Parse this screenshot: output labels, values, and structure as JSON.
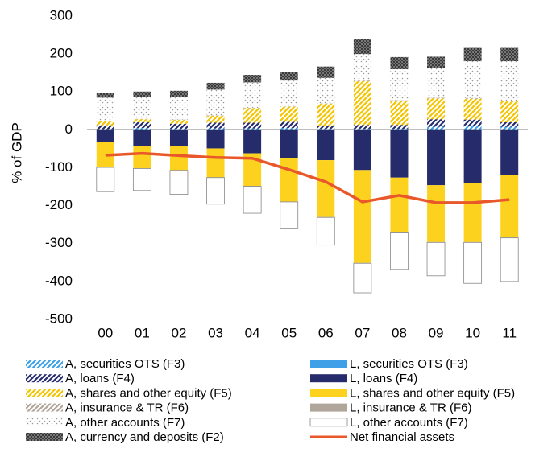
{
  "chart_data": {
    "type": "bar",
    "stacked": true,
    "y_label": "% of GDP",
    "categories": [
      "00",
      "01",
      "02",
      "03",
      "04",
      "05",
      "06",
      "07",
      "08",
      "09",
      "10",
      "11"
    ],
    "ylim": [
      -500,
      300
    ],
    "yticks": [
      -500,
      -400,
      -300,
      -200,
      -100,
      0,
      100,
      200,
      300
    ],
    "series": [
      {
        "name": "A, securities OTS (F3)",
        "color": "#3fa0e8",
        "pattern": "hatch",
        "values": [
          2,
          5,
          3,
          4,
          4,
          5,
          3,
          3,
          3,
          8,
          10,
          8
        ]
      },
      {
        "name": "A, loans (F4)",
        "color": "#262b6b",
        "pattern": "hatch",
        "values": [
          10,
          15,
          13,
          15,
          15,
          16,
          8,
          10,
          10,
          20,
          17,
          12
        ]
      },
      {
        "name": "A, shares and other equity (F5)",
        "color": "#f5c400",
        "pattern": "hatch",
        "values": [
          10,
          8,
          10,
          18,
          38,
          40,
          58,
          115,
          63,
          55,
          55,
          55
        ]
      },
      {
        "name": "A, insurance & TR (F6)",
        "color": "#b0a59a",
        "pattern": "hatch",
        "values": [
          1,
          1,
          1,
          1,
          1,
          1,
          1,
          2,
          2,
          2,
          2,
          2
        ]
      },
      {
        "name": "A, other accounts (F7)",
        "color": "#9a9a9a",
        "pattern": "dots",
        "values": [
          62,
          57,
          60,
          68,
          67,
          68,
          67,
          70,
          82,
          78,
          97,
          104
        ]
      },
      {
        "name": "A, currency and deposits (F2)",
        "color": "#3a3a3a",
        "pattern": "checker",
        "values": [
          12,
          15,
          16,
          18,
          20,
          23,
          30,
          40,
          32,
          30,
          35,
          35
        ]
      },
      {
        "name": "L, securities OTS (F3)",
        "color": "#3fa0e8",
        "pattern": "solid",
        "values": [
          -1,
          -1,
          -1,
          -1,
          -1,
          -1,
          -1,
          -1,
          -1,
          -1,
          -1,
          -1
        ]
      },
      {
        "name": "L, loans (F4)",
        "color": "#262b6b",
        "pattern": "solid",
        "values": [
          -32,
          -42,
          -41,
          -48,
          -61,
          -73,
          -79,
          -105,
          -125,
          -145,
          -140,
          -118
        ]
      },
      {
        "name": "L, shares and other equity (F5)",
        "color": "#fdd21f",
        "pattern": "solid",
        "values": [
          -65,
          -58,
          -64,
          -76,
          -86,
          -115,
          -150,
          -245,
          -145,
          -150,
          -155,
          -165
        ]
      },
      {
        "name": "L, insurance & TR (F6)",
        "color": "#b0a59a",
        "pattern": "solid",
        "values": [
          -1,
          -1,
          -1,
          -1,
          -1,
          -1,
          -1,
          -1,
          -1,
          -1,
          -1,
          -1
        ]
      },
      {
        "name": "L, other accounts (F7)",
        "color": "#ffffff",
        "pattern": "solid",
        "values": [
          -64,
          -58,
          -63,
          -70,
          -71,
          -71,
          -73,
          -78,
          -96,
          -88,
          -108,
          -115
        ]
      },
      {
        "name": "Net financial assets",
        "color": "#e8582a",
        "type": "line",
        "values": [
          -67,
          -62,
          -68,
          -73,
          -75,
          -105,
          -137,
          -190,
          -173,
          -192,
          -192,
          -184
        ]
      }
    ]
  }
}
